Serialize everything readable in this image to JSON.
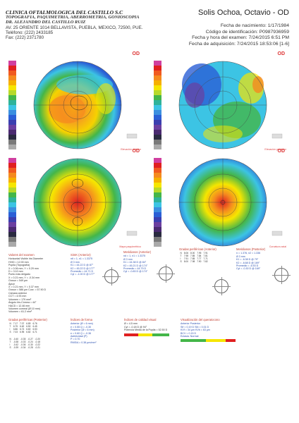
{
  "header": {
    "clinic": "CLINICA OFTALMOLOGICA DEL CASTILLO S.C",
    "services": "TOPOGRAFIA, PAQUIMETRIA, ABERROMETRIA, GONIOSCOPIA",
    "doctor": "DR. ALEJANDRO DEL CASTILLO RUIZ",
    "address": "AV. 25 ORIENTE 1014 BELLAVISTA, PUEBLA, MEXICO, 72500, PUE.",
    "phone": "Teléfono: (222) 2433185",
    "fax": "Fax: (222) 2371780",
    "patient": "Solis Ochoa, Octavio - OD",
    "dob": "Fecha de nacimiento: 1/17/1984",
    "id": "Código de identificación: P0987936959",
    "exam": "Fecha y hora del examen: 7/24/2015 6:51 PM",
    "acquired": "Fecha de adquisición: 7/24/2015 18:53:06 [1-6]"
  },
  "maps": [
    {
      "label": "OD",
      "caption": "Elevación anterior"
    },
    {
      "label": "OD",
      "caption": "Elevación posterior"
    },
    {
      "label": "OD",
      "caption": "Mapa paquimétrico"
    },
    {
      "label": "OD",
      "caption": "Curvatura axial"
    }
  ],
  "panels": {
    "main_title": "Valores del examen",
    "main_lines": [
      "Horizontal Visible Iris Diameter",
      "HVID = 12.00 mm",
      "Pupila (Topografía)",
      "X = 0.06 mm, Y = 0.29 mm",
      "D = 3.10 mm",
      "Punto más delgado",
      "X = 0.21 mm, Y = -0.34 mm",
      "Grosor = 549 µm",
      "Ápice",
      "X = 0.21 mm, Y = 0.37 mm",
      "Grosor = 586 µm   Curv. = 57.90 D",
      "Cámara anterior",
      "CCT = 4.93 mm",
      "Volumen = 179 mm³",
      "Ángulo Iris-Córnea = 44°",
      "HACD = 12.46 mm",
      "Volumen corneal (Ø 10 mm)",
      "Volumen = 61.2 mm³"
    ],
    "sim_title": "SimK (Anterior)",
    "sim_lines": [
      "ntl = 1, n1 = 1.3375",
      "Ø 3 mm",
      "K1 = 44.22 D @ 87°",
      "K2 = 45.22 D @ 177°",
      "Promedio = 44.71 D",
      "Cyl = -1.00 D @ 177°"
    ],
    "mer_title": "Meridianos (Anterior)",
    "mer_lines": [
      "nd = 1, n1 = 1.3375",
      "Ø 3 mm",
      "K1 = 44.38 D @ 84°",
      "K2 = 45.21 D @ 174°",
      "Promedio = 44.79 D",
      "Cyl = -0.83 D @ 174°"
    ],
    "quad_title": "Gradas periféricas (Anterior)",
    "quad2_title": "Meridianos (Posterior)",
    "quad2_lines": [
      "n = 1.376, n2 = 1.336",
      "Ø 3 mm",
      "K1 = -6.38 D @ 79°",
      "K2 = -6.68 D @ 169°",
      "Promedio = -6.53 D",
      "Cyl = -0.30 D @ 169°"
    ],
    "bottom1_title": "Gradas periféricas (Posterior)",
    "bottom2_title": "Índices de forma",
    "bottom2_lines": [
      "Anterior (Ø = 6 mm)",
      "e = 0.55  Q = -0.30",
      "Posterior (Ø = 6 mm)",
      "e = 0.60  Q = -0.36",
      "Asfericidad (P)",
      "P = 0.70",
      "RMS/A = 0.38 µm/mm²"
    ],
    "bottom3_title": "Índices de calidad visual",
    "bottom3_lines": [
      "Ø = 4.5 mm",
      "Cyl = -0.18 D @ 94°",
      "Potencia Media de la Pupila = 52.50 D"
    ],
    "bottom4_title": "Visualización del queratocono",
    "bottom4_lines": [
      "Anterior   Posterior",
      "SIf = 0.19 D   SIb = 0.01 D",
      "KVf = 34 µm   KVb = 63 µm",
      "BCV = 0.15 D",
      "Ectasia: Normal"
    ]
  },
  "colors": {
    "red": "#e02020",
    "orange": "#f58a1f",
    "yellow": "#f6e600",
    "green": "#44b649",
    "cyan": "#3cc4e4",
    "blue": "#2b5fd6",
    "purple": "#6b3fa0",
    "magenta": "#d03fa0"
  }
}
